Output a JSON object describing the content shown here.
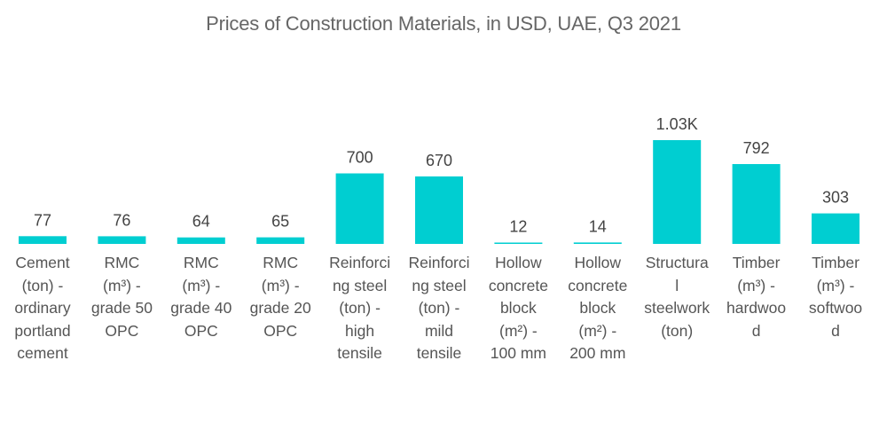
{
  "chart_data": {
    "type": "bar",
    "title": "Prices of Construction Materials, in USD, UAE, Q3 2021",
    "xlabel": "",
    "ylabel": "",
    "ylim": [
      0,
      1030
    ],
    "grid": false,
    "legend": "none",
    "bar_color": "#00CED1",
    "categories": [
      "Cement (ton) - ordinary portland cement",
      "RMC (m³) - grade 50 OPC",
      "RMC (m³) - grade 40 OPC",
      "RMC (m³) - grade 20 OPC",
      "Reinforcing steel (ton) - high tensile",
      "Reinforcing steel (ton) - mild tensile",
      "Hollow concrete block (m²) - 100 mm",
      "Hollow concrete block (m²) - 200 mm",
      "Structural steelwork (ton)",
      "Timber (m³) - hardwood",
      "Timber (m³) - softwood"
    ],
    "category_labels_wrapped": [
      "Cement\n(ton) -\nordinary\nportland\ncement",
      "RMC\n(m³) -\ngrade 50\nOPC",
      "RMC\n(m³) -\ngrade 40\nOPC",
      "RMC\n(m³) -\ngrade 20\nOPC",
      "Reinforci\nng steel\n(ton) -\nhigh\ntensile",
      "Reinforci\nng steel\n(ton) -\nmild\ntensile",
      "Hollow\nconcrete\nblock\n(m²) -\n100 mm",
      "Hollow\nconcrete\nblock\n(m²) -\n200 mm",
      "Structura\nl\nsteelwork\n(ton)",
      "Timber\n(m³) -\nhardwoo\nd",
      "Timber\n(m³) -\nsoftwoo\nd"
    ],
    "values": [
      77,
      76,
      64,
      65,
      700,
      670,
      12,
      14,
      1030,
      792,
      303
    ],
    "data_labels": [
      "77",
      "76",
      "64",
      "65",
      "700",
      "670",
      "12",
      "14",
      "1.03K",
      "792",
      "303"
    ]
  }
}
